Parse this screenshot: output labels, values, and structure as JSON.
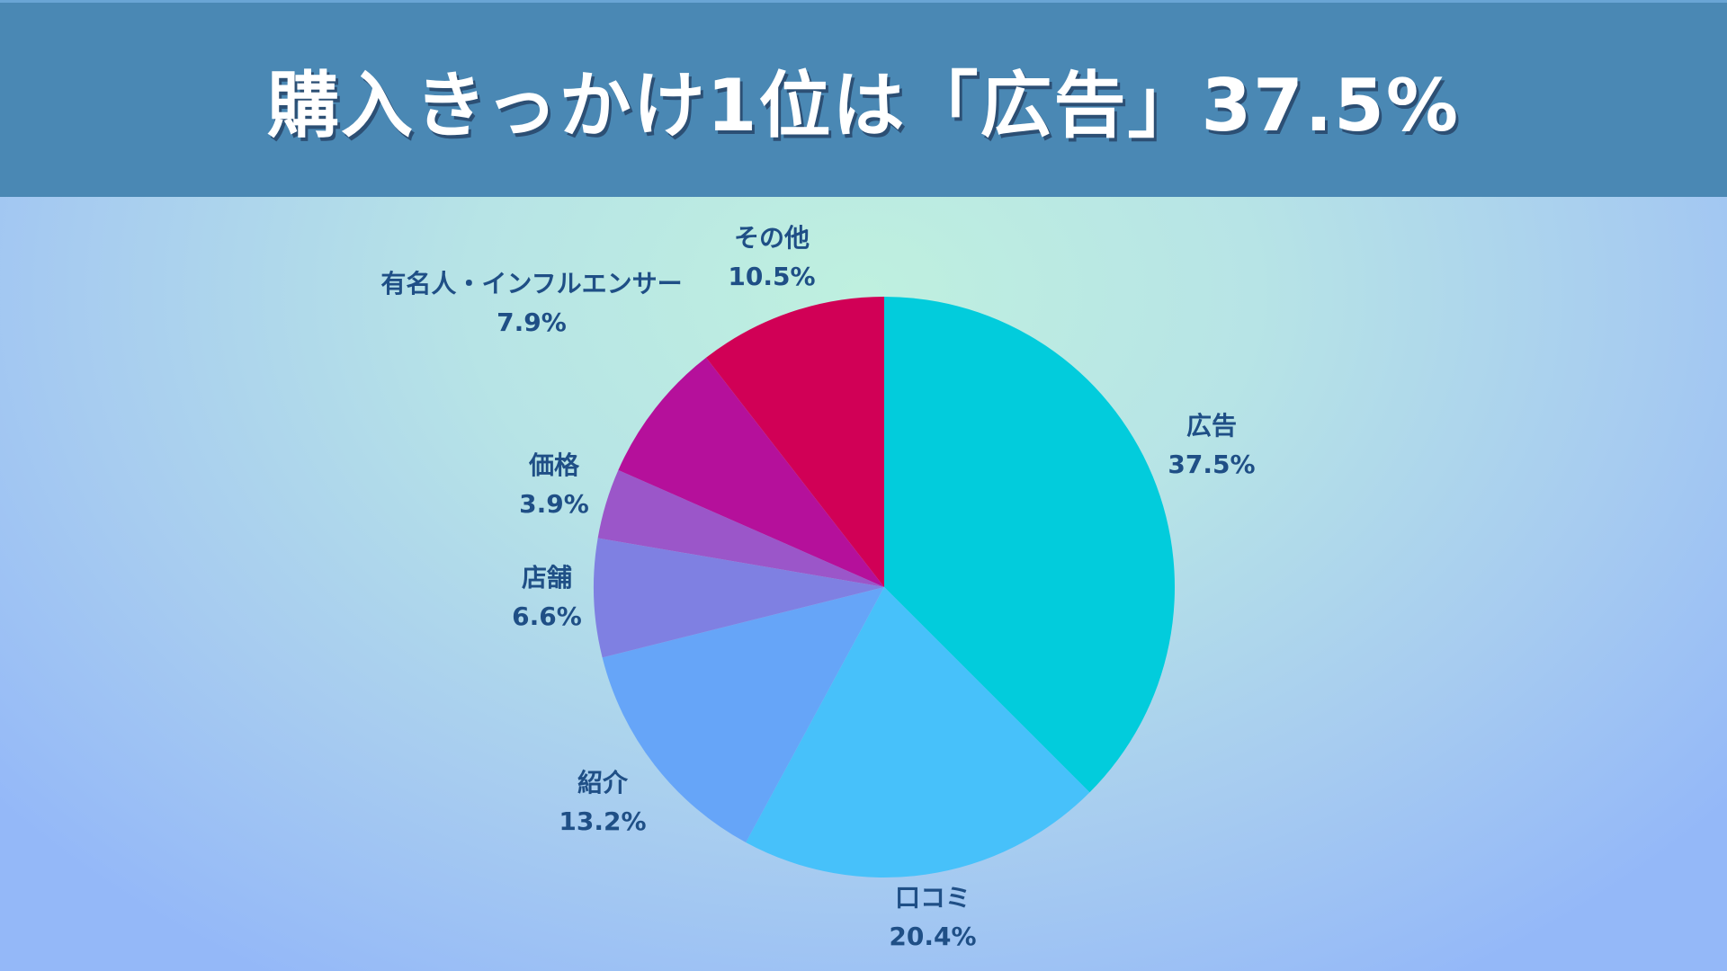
{
  "title": "購入きっかけ1位は「広告」37.5%",
  "chart_data": {
    "type": "pie",
    "slices": [
      {
        "label": "広告",
        "value": 37.5,
        "value_label": "37.5%",
        "color": "#02ccdc"
      },
      {
        "label": "口コミ",
        "value": 20.4,
        "value_label": "20.4%",
        "color": "#47c1fa"
      },
      {
        "label": "紹介",
        "value": 13.2,
        "value_label": "13.2%",
        "color": "#66a5f8"
      },
      {
        "label": "店舗",
        "value": 6.6,
        "value_label": "6.6%",
        "color": "#7f80e2"
      },
      {
        "label": "価格",
        "value": 3.9,
        "value_label": "3.9%",
        "color": "#9b56c9"
      },
      {
        "label": "有名人・インフルエンサー",
        "value": 7.9,
        "value_label": "7.9%",
        "color": "#b5109b"
      },
      {
        "label": "その他",
        "value": 10.5,
        "value_label": "10.5%",
        "color": "#d10056"
      }
    ],
    "legend": "none"
  }
}
